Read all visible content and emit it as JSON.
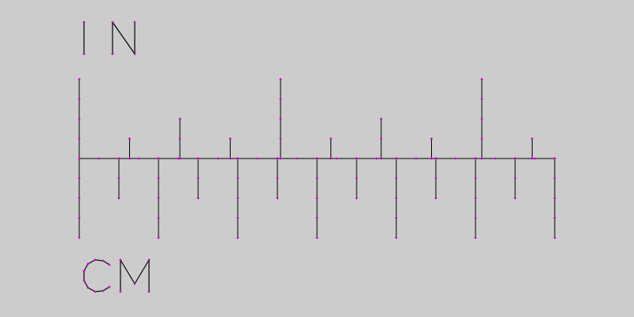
{
  "labels": {
    "inches": "IN",
    "centimeters": "CM"
  },
  "colors": {
    "background": "#cccccc",
    "line": "#000000",
    "vertex_dot": "#cc00cc"
  },
  "ruler": {
    "inch_ticks": [
      {
        "value": 0,
        "level": "inch"
      },
      {
        "value": 0.25,
        "level": "quarter"
      },
      {
        "value": 0.5,
        "level": "half"
      },
      {
        "value": 0.75,
        "level": "quarter"
      },
      {
        "value": 1,
        "level": "inch"
      },
      {
        "value": 1.25,
        "level": "quarter"
      },
      {
        "value": 1.5,
        "level": "half"
      },
      {
        "value": 1.75,
        "level": "quarter"
      },
      {
        "value": 2,
        "level": "inch"
      },
      {
        "value": 2.25,
        "level": "quarter"
      }
    ],
    "cm_ticks": [
      {
        "value": 0,
        "level": "cm"
      },
      {
        "value": 0.5,
        "level": "half"
      },
      {
        "value": 1,
        "level": "cm"
      },
      {
        "value": 1.5,
        "level": "half"
      },
      {
        "value": 2,
        "level": "cm"
      },
      {
        "value": 2.5,
        "level": "half"
      },
      {
        "value": 3,
        "level": "cm"
      },
      {
        "value": 3.5,
        "level": "half"
      },
      {
        "value": 4,
        "level": "cm"
      },
      {
        "value": 4.5,
        "level": "half"
      },
      {
        "value": 5,
        "level": "cm"
      },
      {
        "value": 5.5,
        "level": "half"
      },
      {
        "value": 6,
        "level": "cm"
      }
    ]
  }
}
